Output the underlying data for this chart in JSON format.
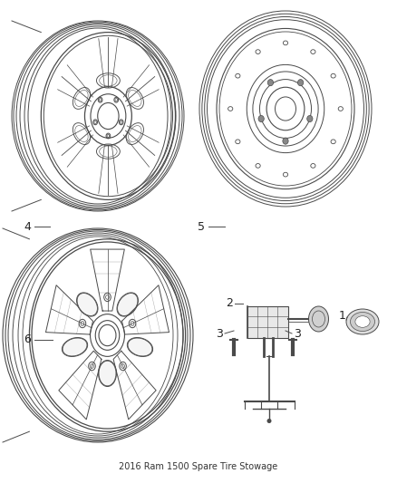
{
  "title": "2016 Ram 1500 Spare Tire Stowage",
  "bg_color": "#ffffff",
  "line_color": "#4a4a4a",
  "label_color": "#222222",
  "figsize": [
    4.38,
    5.33
  ],
  "dpi": 100
}
